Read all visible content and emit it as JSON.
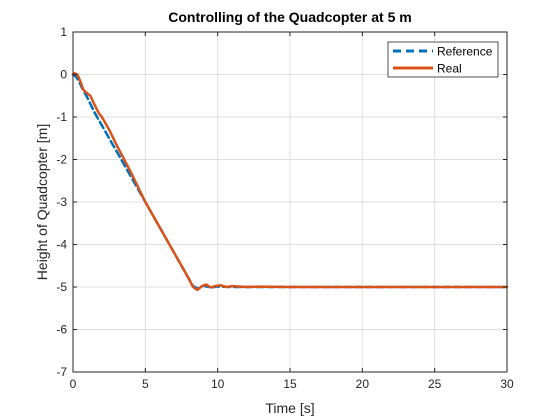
{
  "chart_data": {
    "type": "line",
    "title": "Controlling of the Quadcopter at 5 m",
    "xlabel": "Time [s]",
    "ylabel": "Height of Quadcopter [m]",
    "xlim": [
      0,
      30
    ],
    "ylim": [
      -7,
      1
    ],
    "xticks": [
      0,
      5,
      10,
      15,
      20,
      25,
      30
    ],
    "yticks": [
      1,
      0,
      -1,
      -2,
      -3,
      -4,
      -5,
      -6,
      -7
    ],
    "grid": true,
    "legend": "top-right",
    "series": [
      {
        "name": "Reference",
        "style": "dashed",
        "color": "#0072BD",
        "x": [
          0,
          0.2,
          0.4,
          0.6,
          1.0,
          1.5,
          2.0,
          3.0,
          4.0,
          5.0,
          6.0,
          7.0,
          8.0,
          8.3,
          8.6,
          9.0,
          9.5,
          10.0,
          11.0,
          12.0,
          15.0,
          20.0,
          25.0,
          30.0
        ],
        "y": [
          0,
          -0.05,
          -0.15,
          -0.3,
          -0.55,
          -0.9,
          -1.2,
          -1.8,
          -2.4,
          -3.0,
          -3.6,
          -4.2,
          -4.8,
          -4.98,
          -5.03,
          -4.97,
          -5.01,
          -4.99,
          -5.0,
          -5.0,
          -5.0,
          -5.0,
          -5.0,
          -5.0
        ]
      },
      {
        "name": "Real",
        "style": "solid",
        "color": "#D95319",
        "x": [
          0,
          0.1,
          0.3,
          0.5,
          0.7,
          0.9,
          1.0,
          1.2,
          1.5,
          1.8,
          2.0,
          2.5,
          3.0,
          4.0,
          5.0,
          6.0,
          7.0,
          8.0,
          8.3,
          8.6,
          8.9,
          9.2,
          9.5,
          9.8,
          10.2,
          10.6,
          11.0,
          12.0,
          13.0,
          15.0,
          20.0,
          25.0,
          30.0
        ],
        "y": [
          0,
          0.03,
          0.0,
          -0.15,
          -0.35,
          -0.42,
          -0.45,
          -0.5,
          -0.72,
          -0.92,
          -1.0,
          -1.3,
          -1.65,
          -2.3,
          -3.0,
          -3.6,
          -4.2,
          -4.8,
          -5.0,
          -5.07,
          -4.98,
          -4.94,
          -5.01,
          -4.98,
          -4.96,
          -5.0,
          -4.98,
          -5.0,
          -4.99,
          -5.0,
          -5.0,
          -5.0,
          -5.0
        ]
      }
    ]
  }
}
